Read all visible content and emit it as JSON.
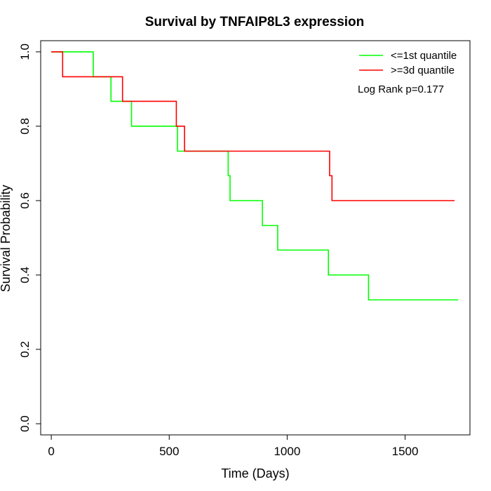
{
  "chart_data": {
    "type": "line",
    "title": "Survival by TNFAIP8L3 expression",
    "xlabel": "Time (Days)",
    "ylabel": "Survival Probability",
    "xlim": [
      -45,
      1775
    ],
    "ylim": [
      -0.03,
      1.03
    ],
    "x_ticks": [
      0,
      500,
      1000,
      1500
    ],
    "y_ticks": [
      0.0,
      0.2,
      0.4,
      0.6,
      0.8,
      1.0
    ],
    "x_tick_labels": [
      "0",
      "500",
      "1000",
      "1500"
    ],
    "y_tick_labels": [
      "0.0",
      "0.2",
      "0.4",
      "0.6",
      "0.8",
      "1.0"
    ],
    "legend_position": "top-right",
    "annotation": "Log Rank p=0.177",
    "series": [
      {
        "name": "<=1st quantile",
        "color": "#00ff00",
        "step_points": [
          [
            0,
            1.0
          ],
          [
            178,
            1.0
          ],
          [
            178,
            0.933
          ],
          [
            253,
            0.933
          ],
          [
            253,
            0.867
          ],
          [
            340,
            0.867
          ],
          [
            340,
            0.8
          ],
          [
            535,
            0.8
          ],
          [
            535,
            0.733
          ],
          [
            750,
            0.733
          ],
          [
            750,
            0.667
          ],
          [
            758,
            0.667
          ],
          [
            758,
            0.6
          ],
          [
            895,
            0.6
          ],
          [
            895,
            0.533
          ],
          [
            960,
            0.533
          ],
          [
            960,
            0.467
          ],
          [
            1175,
            0.467
          ],
          [
            1175,
            0.4
          ],
          [
            1345,
            0.4
          ],
          [
            1345,
            0.333
          ],
          [
            1725,
            0.333
          ]
        ]
      },
      {
        "name": ">=3d quantile",
        "color": "#ff0000",
        "step_points": [
          [
            0,
            1.0
          ],
          [
            48,
            1.0
          ],
          [
            48,
            0.933
          ],
          [
            302,
            0.933
          ],
          [
            302,
            0.867
          ],
          [
            530,
            0.867
          ],
          [
            530,
            0.8
          ],
          [
            565,
            0.8
          ],
          [
            565,
            0.733
          ],
          [
            1180,
            0.733
          ],
          [
            1180,
            0.667
          ],
          [
            1190,
            0.667
          ],
          [
            1190,
            0.6
          ],
          [
            1710,
            0.6
          ]
        ]
      }
    ]
  }
}
